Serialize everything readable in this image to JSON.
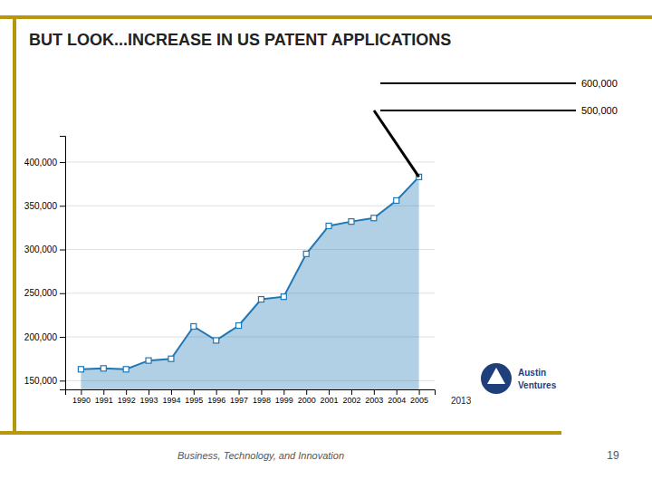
{
  "chart_data": {
    "type": "area",
    "title": "BUT LOOK...INCREASE IN US PATENT APPLICATIONS",
    "x": [
      1990,
      1991,
      1992,
      1993,
      1994,
      1995,
      1996,
      1997,
      1998,
      1999,
      2000,
      2001,
      2002,
      2003,
      2004,
      2005
    ],
    "values": [
      163000,
      164000,
      163000,
      173000,
      175000,
      212000,
      196000,
      213000,
      243000,
      246000,
      295000,
      327000,
      332000,
      336000,
      356000,
      383000
    ],
    "marker": "square",
    "xlim": [
      1989.3,
      2005.7
    ],
    "xticks": [
      1990,
      1991,
      1992,
      1993,
      1994,
      1995,
      1996,
      1997,
      1998,
      1999,
      2000,
      2001,
      2002,
      2003,
      2004,
      2005
    ],
    "ylim": [
      140000,
      430000
    ],
    "yticks": [
      {
        "value": 150000,
        "label": "150,000"
      },
      {
        "value": 200000,
        "label": "200,000"
      },
      {
        "value": 250000,
        "label": "250,000"
      },
      {
        "value": 300000,
        "label": "300,000"
      },
      {
        "value": 350000,
        "label": "350,000"
      },
      {
        "value": 400000,
        "label": "400,000"
      }
    ],
    "grid": true,
    "annotations": [
      "2013",
      "600,000",
      "500,000",
      "Business, Technology, and Innovation",
      "19",
      "Austin",
      "Ventures"
    ]
  }
}
